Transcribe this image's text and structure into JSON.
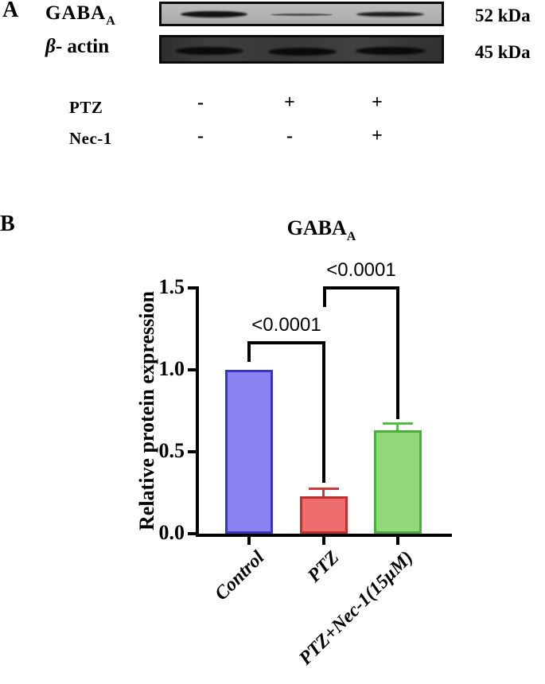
{
  "panel_a": {
    "label": "A",
    "gaba_label": {
      "main": "GABA",
      "sub": "A"
    },
    "actin_label": {
      "beta": "β",
      "rest": "- actin"
    },
    "marker_52": "52 kDa",
    "marker_45": "45 kDa",
    "conditions": {
      "ptz_label": "PTZ",
      "nec1_label": "Nec-1",
      "ptz": [
        "-",
        "+",
        "+"
      ],
      "nec1": [
        "-",
        "-",
        "+"
      ]
    },
    "blots": {
      "gaba_band_intensity": [
        "strong",
        "faint",
        "medium"
      ],
      "actin_band_intensity": [
        "strong",
        "strong",
        "strong"
      ]
    }
  },
  "panel_b": {
    "label": "B",
    "title": {
      "main": "GABA",
      "sub": "A"
    }
  },
  "chart_data": {
    "type": "bar",
    "title": "GABA_A",
    "xlabel": "",
    "ylabel": "Relative protein expression",
    "categories": [
      "Control",
      "PTZ",
      "PTZ+Nec-1(15μM)"
    ],
    "values": [
      1.0,
      0.23,
      0.63
    ],
    "errors": [
      0,
      0.04,
      0.035
    ],
    "bar_colors": [
      "#8a82f0",
      "#ee6e6e",
      "#90d87a"
    ],
    "bar_border_colors": [
      "#3b35c4",
      "#c22f2f",
      "#4aae3a"
    ],
    "error_colors": [
      "#000000",
      "#cc3a3a",
      "#57bb47"
    ],
    "ylim": [
      0,
      1.5
    ],
    "yticks": [
      "0.0",
      "0.5",
      "1.0",
      "1.5"
    ],
    "ytick_values": [
      0,
      0.5,
      1.0,
      1.5
    ],
    "grid": false,
    "legend": "none",
    "significance": [
      {
        "label": "<0.0001",
        "between": [
          "Control",
          "PTZ"
        ]
      },
      {
        "label": "<0.0001",
        "between": [
          "PTZ",
          "PTZ+Nec-1(15μM)"
        ]
      }
    ]
  }
}
